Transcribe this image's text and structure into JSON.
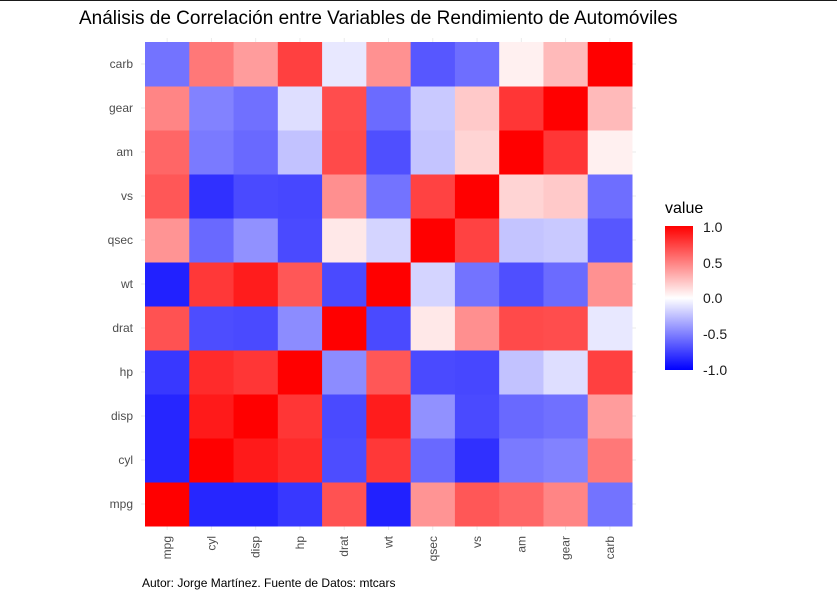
{
  "title": "Análisis de Correlación entre Variables de Rendimiento de Automóviles",
  "caption": "Autor: Jorge Martínez. Fuente de Datos: mtcars",
  "legend": {
    "title": "value",
    "ticks": [
      "1.0",
      "0.5",
      "0.0",
      "-0.5",
      "-1.0"
    ],
    "tick_values": [
      1.0,
      0.5,
      0.0,
      -0.5,
      -1.0
    ],
    "colors": {
      "high": "#ff0000",
      "mid": "#ffffff",
      "low": "#0000ff"
    }
  },
  "chart_data": {
    "type": "heatmap",
    "x_categories": [
      "mpg",
      "cyl",
      "disp",
      "hp",
      "drat",
      "wt",
      "qsec",
      "vs",
      "am",
      "gear",
      "carb"
    ],
    "y_categories": [
      "mpg",
      "cyl",
      "disp",
      "hp",
      "drat",
      "wt",
      "qsec",
      "vs",
      "am",
      "gear",
      "carb"
    ],
    "value_range": [
      -1,
      1
    ],
    "matrix": [
      [
        1.0,
        -0.85,
        -0.85,
        -0.78,
        0.68,
        -0.87,
        0.42,
        0.66,
        0.6,
        0.48,
        -0.55
      ],
      [
        -0.85,
        1.0,
        0.9,
        0.83,
        -0.7,
        0.78,
        -0.59,
        -0.81,
        -0.52,
        -0.49,
        0.53
      ],
      [
        -0.85,
        0.9,
        1.0,
        0.79,
        -0.71,
        0.89,
        -0.43,
        -0.71,
        -0.59,
        -0.56,
        0.39
      ],
      [
        -0.78,
        0.83,
        0.79,
        1.0,
        -0.45,
        0.66,
        -0.71,
        -0.72,
        -0.24,
        -0.13,
        0.75
      ],
      [
        0.68,
        -0.7,
        -0.71,
        -0.45,
        1.0,
        -0.71,
        0.09,
        0.44,
        0.71,
        0.7,
        -0.09
      ],
      [
        -0.87,
        0.78,
        0.89,
        0.66,
        -0.71,
        1.0,
        -0.17,
        -0.55,
        -0.69,
        -0.58,
        0.43
      ],
      [
        0.42,
        -0.59,
        -0.43,
        -0.71,
        0.09,
        -0.17,
        1.0,
        0.74,
        -0.23,
        -0.21,
        -0.66
      ],
      [
        0.66,
        -0.81,
        -0.71,
        -0.72,
        0.44,
        -0.55,
        0.74,
        1.0,
        0.17,
        0.21,
        -0.57
      ],
      [
        0.6,
        -0.52,
        -0.59,
        -0.24,
        0.71,
        -0.69,
        -0.23,
        0.17,
        1.0,
        0.79,
        0.06
      ],
      [
        0.48,
        -0.49,
        -0.56,
        -0.13,
        0.7,
        -0.58,
        -0.21,
        0.21,
        0.79,
        1.0,
        0.27
      ],
      [
        -0.55,
        0.53,
        0.39,
        0.75,
        -0.09,
        0.43,
        -0.66,
        -0.57,
        0.06,
        0.27,
        1.0
      ]
    ],
    "grid": true,
    "legend_position": "right"
  }
}
